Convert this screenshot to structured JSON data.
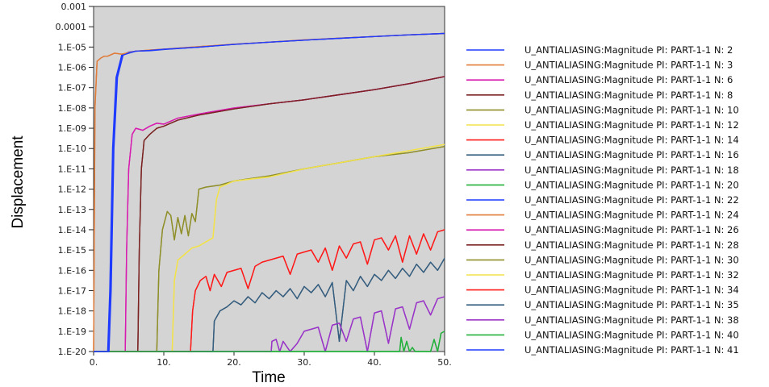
{
  "chart_data": {
    "type": "line",
    "xlabel": "Time",
    "ylabel": "Displacement",
    "xlim": [
      0,
      50
    ],
    "ylim_log10": [
      -20,
      -3
    ],
    "y_scale": "log",
    "grid": false,
    "background": "#d4d4d4",
    "legend_placement": "right",
    "x_ticks": [
      0,
      10,
      20,
      30,
      40,
      50
    ],
    "x_tick_labels": [
      "0.",
      "10.",
      "20.",
      "30.",
      "40.",
      "50."
    ],
    "y_ticks_log10": [
      -3,
      -4,
      -5,
      -6,
      -7,
      -8,
      -9,
      -10,
      -11,
      -12,
      -13,
      -14,
      -15,
      -16,
      -17,
      -18,
      -19,
      -20
    ],
    "y_tick_labels": [
      "0.001",
      "0.0001",
      "1.E-05",
      "1.E-06",
      "1.E-07",
      "1.E-08",
      "1.E-09",
      "1.E-10",
      "1.E-11",
      "1.E-12",
      "1.E-13",
      "1.E-14",
      "1.E-15",
      "1.E-16",
      "1.E-17",
      "1.E-18",
      "1.E-19",
      "1.E-20"
    ],
    "series": [
      {
        "name": "U_ANTIALIASING:Magnitude PI: PART-1-1 N: 2",
        "color": "#1f3bff",
        "x": [
          0,
          2.0,
          2.3,
          2.7,
          3.2,
          4.0,
          5.0,
          6.0,
          8,
          10,
          15,
          20,
          25,
          30,
          35,
          40,
          45,
          50
        ],
        "y": [
          -20,
          -20,
          -17,
          -10,
          -6.5,
          -5.4,
          -5.25,
          -5.2,
          -5.18,
          -5.12,
          -5.0,
          -4.86,
          -4.76,
          -4.66,
          -4.57,
          -4.48,
          -4.4,
          -4.33
        ]
      },
      {
        "name": "U_ANTIALIASING:Magnitude PI: PART-1-1 N: 3",
        "color": "#e07b39",
        "x": [
          0,
          0.2,
          0.5,
          1.0,
          1.5,
          2.0,
          3.0,
          4.0,
          6,
          8,
          10,
          15,
          20,
          25,
          30,
          35,
          40,
          45,
          50
        ],
        "y": [
          -20,
          -8,
          -5.7,
          -5.55,
          -5.45,
          -5.45,
          -5.3,
          -5.35,
          -5.2,
          -5.15,
          -5.1,
          -4.98,
          -4.86,
          -4.76,
          -4.65,
          -4.56,
          -4.48,
          -4.4,
          -4.33
        ]
      },
      {
        "name": "U_ANTIALIASING:Magnitude PI: PART-1-1 N: 6",
        "color": "#d81bb0",
        "x": [
          0,
          4.5,
          4.7,
          5.0,
          5.5,
          6.0,
          7,
          8,
          9,
          10,
          12,
          15,
          20,
          25,
          30,
          35,
          40,
          45,
          50
        ],
        "y": [
          -20,
          -20,
          -15,
          -11,
          -9.3,
          -9.0,
          -9.1,
          -8.9,
          -8.75,
          -8.8,
          -8.5,
          -8.3,
          -8.0,
          -7.8,
          -7.6,
          -7.35,
          -7.1,
          -6.8,
          -6.45
        ]
      },
      {
        "name": "U_ANTIALIASING:Magnitude PI: PART-1-1 N: 8",
        "color": "#7a2121",
        "x": [
          0,
          6.3,
          6.5,
          6.8,
          7.2,
          8,
          9,
          10,
          12,
          15,
          20,
          25,
          30,
          35,
          40,
          45,
          50
        ],
        "y": [
          -20,
          -20,
          -15,
          -11,
          -9.6,
          -9.3,
          -9.0,
          -8.9,
          -8.6,
          -8.35,
          -8.05,
          -7.8,
          -7.6,
          -7.35,
          -7.1,
          -6.8,
          -6.45
        ]
      },
      {
        "name": "U_ANTIALIASING:Magnitude PI: PART-1-1 N: 10",
        "color": "#8f8f2a",
        "x": [
          0,
          9.0,
          9.3,
          9.8,
          10.5,
          11.0,
          11.5,
          12.0,
          12.5,
          13.0,
          13.5,
          14.0,
          14.5,
          15.0,
          16,
          18,
          20,
          25,
          30,
          35,
          40,
          45,
          50
        ],
        "y": [
          -20,
          -20,
          -16,
          -14,
          -13.1,
          -13.3,
          -14.5,
          -13.4,
          -14.2,
          -13.3,
          -14.3,
          -13.2,
          -13.6,
          -12.0,
          -11.9,
          -11.8,
          -11.6,
          -11.35,
          -11.0,
          -10.7,
          -10.4,
          -10.2,
          -9.9
        ]
      },
      {
        "name": "U_ANTIALIASING:Magnitude PI: PART-1-1 N: 12",
        "color": "#f2e24a",
        "x": [
          0,
          11.2,
          11.5,
          12.0,
          13.0,
          14.0,
          15.0,
          16.0,
          17.0,
          17.5,
          18.0,
          20,
          25,
          30,
          35,
          40,
          45,
          50
        ],
        "y": [
          -20,
          -20,
          -16.5,
          -15.5,
          -15.2,
          -14.9,
          -14.8,
          -14.6,
          -14.4,
          -12.5,
          -11.9,
          -11.6,
          -11.4,
          -11.0,
          -10.7,
          -10.4,
          -10.1,
          -9.8
        ]
      },
      {
        "name": "U_ANTIALIASING:Magnitude PI: PART-1-1 N: 14",
        "color": "#ff1a1a",
        "x": [
          0,
          13.8,
          14.1,
          14.5,
          15.2,
          16.0,
          16.6,
          17.2,
          18.2,
          19,
          20,
          21,
          22,
          23,
          24,
          25,
          26,
          27,
          28,
          29,
          30,
          31,
          32,
          33,
          34,
          35,
          36,
          37,
          38,
          39,
          40,
          41,
          42,
          43,
          44,
          45,
          46,
          47,
          48,
          49,
          50
        ],
        "y": [
          -20,
          -20,
          -18,
          -17.0,
          -16.5,
          -16.3,
          -17.0,
          -16.2,
          -16.8,
          -16.1,
          -16.0,
          -15.9,
          -16.9,
          -15.8,
          -15.6,
          -15.5,
          -15.4,
          -15.3,
          -16.2,
          -15.2,
          -15.1,
          -15.0,
          -15.6,
          -14.9,
          -16.0,
          -14.8,
          -15.4,
          -14.7,
          -14.6,
          -15.7,
          -14.5,
          -14.4,
          -15.0,
          -14.3,
          -15.6,
          -14.3,
          -15.2,
          -14.2,
          -15.0,
          -14.1,
          -14.0
        ]
      },
      {
        "name": "U_ANTIALIASING:Magnitude PI: PART-1-1 N: 16",
        "color": "#355d7e",
        "x": [
          0,
          17.0,
          17.2,
          18,
          19,
          20,
          21,
          22,
          23,
          24,
          25,
          26,
          27,
          28,
          29,
          30,
          31,
          32,
          33,
          34,
          35,
          36,
          37,
          38,
          39,
          40,
          41,
          42,
          43,
          44,
          45,
          46,
          47,
          48,
          49,
          50
        ],
        "y": [
          -20,
          -20,
          -18.5,
          -18.0,
          -17.8,
          -17.5,
          -17.7,
          -17.3,
          -17.6,
          -17.1,
          -17.4,
          -17.0,
          -17.3,
          -16.9,
          -17.4,
          -16.8,
          -17.1,
          -16.7,
          -17.3,
          -16.6,
          -19.5,
          -16.5,
          -17.0,
          -16.3,
          -16.8,
          -16.2,
          -16.5,
          -16.0,
          -16.4,
          -15.9,
          -16.3,
          -15.7,
          -16.1,
          -15.6,
          -16.0,
          -15.4
        ]
      },
      {
        "name": "U_ANTIALIASING:Magnitude PI: PART-1-1 N: 18",
        "color": "#9a34c8",
        "x": [
          0,
          25.3,
          25.4,
          26.0,
          26.5,
          27,
          28,
          29,
          30,
          31,
          32,
          33,
          34,
          35,
          36,
          37,
          38,
          39,
          40,
          41,
          42,
          43,
          44,
          45,
          46,
          47,
          48,
          49,
          50
        ],
        "y": [
          -20,
          -20,
          -19.5,
          -19.4,
          -20,
          -19.5,
          -20,
          -19.6,
          -19.0,
          -18.9,
          -18.8,
          -20,
          -18.7,
          -18.6,
          -19.5,
          -18.4,
          -18.3,
          -20,
          -18.1,
          -18.0,
          -19.6,
          -17.9,
          -17.8,
          -18.9,
          -17.6,
          -17.5,
          -18.2,
          -17.4,
          -17.3
        ]
      },
      {
        "name": "U_ANTIALIASING:Magnitude PI: PART-1-1 N: 20",
        "color": "#22b03a",
        "x": [
          0,
          43.6,
          43.8,
          44.2,
          44.6,
          45.0,
          45.4,
          45.8,
          46.5,
          47.0,
          48.0,
          48.5,
          49.0,
          49.5,
          50
        ],
        "y": [
          -20,
          -20,
          -19.3,
          -20,
          -19.5,
          -20,
          -19.8,
          -20,
          -20,
          -20,
          -20,
          -19.4,
          -20,
          -19.1,
          -19.0
        ]
      },
      {
        "name": "U_ANTIALIASING:Magnitude PI: PART-1-1 N: 22",
        "color": "#1f3bff",
        "x": [
          0,
          2.1,
          2.4,
          2.8,
          3.3,
          4.1,
          5.0,
          6.0,
          8,
          10,
          15,
          20,
          25,
          30,
          35,
          40,
          45,
          50
        ],
        "y": [
          -20,
          -20,
          -17,
          -10,
          -6.5,
          -5.4,
          -5.3,
          -5.2,
          -5.17,
          -5.11,
          -5.0,
          -4.87,
          -4.76,
          -4.66,
          -4.57,
          -4.48,
          -4.4,
          -4.33
        ]
      },
      {
        "name": "U_ANTIALIASING:Magnitude PI: PART-1-1 N: 24",
        "color": "#e07b39",
        "x": [
          0,
          0.2,
          0.5,
          1.0,
          1.5,
          2.0,
          3.0,
          4.0,
          6,
          8,
          10,
          15,
          20,
          25,
          30,
          35,
          40,
          45,
          50
        ],
        "y": [
          -20,
          -8,
          -5.7,
          -5.55,
          -5.45,
          -5.45,
          -5.3,
          -5.35,
          -5.2,
          -5.15,
          -5.1,
          -4.98,
          -4.86,
          -4.76,
          -4.65,
          -4.56,
          -4.48,
          -4.4,
          -4.33
        ]
      },
      {
        "name": "U_ANTIALIASING:Magnitude PI: PART-1-1 N: 26",
        "color": "#d81bb0",
        "x": [
          0,
          4.5,
          4.7,
          5.0,
          5.5,
          6.0,
          7,
          8,
          9,
          10,
          12,
          15,
          20,
          25,
          30,
          35,
          40,
          45,
          50
        ],
        "y": [
          -20,
          -20,
          -15,
          -11,
          -9.3,
          -9.0,
          -9.1,
          -8.9,
          -8.75,
          -8.8,
          -8.5,
          -8.3,
          -8.0,
          -7.8,
          -7.6,
          -7.35,
          -7.1,
          -6.8,
          -6.45
        ]
      },
      {
        "name": "U_ANTIALIASING:Magnitude PI: PART-1-1 N: 28",
        "color": "#7a2121",
        "x": [
          0,
          6.3,
          6.5,
          6.8,
          7.2,
          8,
          9,
          10,
          12,
          15,
          20,
          25,
          30,
          35,
          40,
          45,
          50
        ],
        "y": [
          -20,
          -20,
          -15,
          -11,
          -9.6,
          -9.3,
          -9.0,
          -8.9,
          -8.6,
          -8.35,
          -8.05,
          -7.8,
          -7.6,
          -7.35,
          -7.1,
          -6.8,
          -6.45
        ]
      },
      {
        "name": "U_ANTIALIASING:Magnitude PI: PART-1-1 N: 30",
        "color": "#8f8f2a",
        "x": [
          0,
          9.0,
          9.3,
          9.8,
          10.5,
          11.0,
          11.5,
          12.0,
          12.5,
          13.0,
          13.5,
          14.0,
          14.5,
          15.0,
          16,
          18,
          20,
          25,
          30,
          35,
          40,
          45,
          50
        ],
        "y": [
          -20,
          -20,
          -16,
          -14,
          -13.1,
          -13.3,
          -14.5,
          -13.4,
          -14.2,
          -13.3,
          -14.3,
          -13.2,
          -13.6,
          -12.0,
          -11.9,
          -11.8,
          -11.6,
          -11.35,
          -11.0,
          -10.7,
          -10.4,
          -10.2,
          -9.9
        ]
      },
      {
        "name": "U_ANTIALIASING:Magnitude PI: PART-1-1 N: 32",
        "color": "#f2e24a",
        "x": [
          0,
          11.2,
          11.5,
          12.0,
          13.0,
          14.0,
          15.0,
          16.0,
          17.0,
          17.5,
          18.0,
          20,
          25,
          30,
          35,
          40,
          45,
          50
        ],
        "y": [
          -20,
          -20,
          -16.5,
          -15.5,
          -15.2,
          -14.9,
          -14.8,
          -14.6,
          -14.4,
          -12.5,
          -11.9,
          -11.6,
          -11.4,
          -11.0,
          -10.7,
          -10.4,
          -10.1,
          -9.8
        ]
      },
      {
        "name": "U_ANTIALIASING:Magnitude PI: PART-1-1 N: 34",
        "color": "#ff1a1a",
        "x": [
          0,
          13.8,
          14.1,
          14.5,
          15.2,
          16.0,
          16.6,
          17.2,
          18.2,
          19,
          20,
          21,
          22,
          23,
          24,
          25,
          26,
          27,
          28,
          29,
          30,
          31,
          32,
          33,
          34,
          35,
          36,
          37,
          38,
          39,
          40,
          41,
          42,
          43,
          44,
          45,
          46,
          47,
          48,
          49,
          50
        ],
        "y": [
          -20,
          -20,
          -18,
          -17.0,
          -16.5,
          -16.3,
          -17.0,
          -16.2,
          -16.8,
          -16.1,
          -16.0,
          -15.9,
          -16.9,
          -15.8,
          -15.6,
          -15.5,
          -15.4,
          -15.3,
          -16.2,
          -15.2,
          -15.1,
          -15.0,
          -15.6,
          -14.9,
          -16.0,
          -14.8,
          -15.4,
          -14.7,
          -14.6,
          -15.7,
          -14.5,
          -14.4,
          -15.0,
          -14.3,
          -15.6,
          -14.3,
          -15.2,
          -14.2,
          -15.0,
          -14.1,
          -14.0
        ]
      },
      {
        "name": "U_ANTIALIASING:Magnitude PI: PART-1-1 N: 35",
        "color": "#355d7e",
        "x": [
          0,
          17.0,
          17.2,
          18,
          19,
          20,
          21,
          22,
          23,
          24,
          25,
          26,
          27,
          28,
          29,
          30,
          31,
          32,
          33,
          34,
          35,
          36,
          37,
          38,
          39,
          40,
          41,
          42,
          43,
          44,
          45,
          46,
          47,
          48,
          49,
          50
        ],
        "y": [
          -20,
          -20,
          -18.5,
          -18.0,
          -17.8,
          -17.5,
          -17.7,
          -17.3,
          -17.6,
          -17.1,
          -17.4,
          -17.0,
          -17.3,
          -16.9,
          -17.4,
          -16.8,
          -17.1,
          -16.7,
          -17.3,
          -16.6,
          -19.5,
          -16.5,
          -17.0,
          -16.3,
          -16.8,
          -16.2,
          -16.5,
          -16.0,
          -16.4,
          -15.9,
          -16.3,
          -15.7,
          -16.1,
          -15.6,
          -16.0,
          -15.4
        ]
      },
      {
        "name": "U_ANTIALIASING:Magnitude PI: PART-1-1 N: 38",
        "color": "#9a34c8",
        "x": [
          0,
          25.3,
          25.4,
          26.0,
          26.5,
          27,
          28,
          29,
          30,
          31,
          32,
          33,
          34,
          35,
          36,
          37,
          38,
          39,
          40,
          41,
          42,
          43,
          44,
          45,
          46,
          47,
          48,
          49,
          50
        ],
        "y": [
          -20,
          -20,
          -19.5,
          -19.4,
          -20,
          -19.5,
          -20,
          -19.6,
          -19.0,
          -18.9,
          -18.8,
          -20,
          -18.7,
          -18.6,
          -19.5,
          -18.4,
          -18.3,
          -20,
          -18.1,
          -18.0,
          -19.6,
          -17.9,
          -17.8,
          -18.9,
          -17.6,
          -17.5,
          -18.2,
          -17.4,
          -17.3
        ]
      },
      {
        "name": "U_ANTIALIASING:Magnitude PI: PART-1-1 N: 40",
        "color": "#22b03a",
        "x": [
          0,
          43.6,
          43.8,
          44.2,
          44.6,
          45.0,
          45.4,
          45.8,
          46.5,
          47.0,
          48.0,
          48.5,
          49.0,
          49.5,
          50
        ],
        "y": [
          -20,
          -20,
          -19.3,
          -20,
          -19.5,
          -20,
          -19.8,
          -20,
          -20,
          -20,
          -20,
          -19.4,
          -20,
          -19.1,
          -19.0
        ]
      },
      {
        "name": "U_ANTIALIASING:Magnitude PI: PART-1-1 N: 41",
        "color": "#1f3bff",
        "x": [
          0,
          2.2,
          2.5,
          2.9,
          3.4,
          4.2,
          5.0,
          6.0,
          8,
          10,
          15,
          20,
          25,
          30,
          35,
          40,
          45,
          50
        ],
        "y": [
          -20,
          -20,
          -17,
          -10,
          -6.5,
          -5.4,
          -5.3,
          -5.2,
          -5.17,
          -5.11,
          -5.0,
          -4.87,
          -4.76,
          -4.66,
          -4.57,
          -4.48,
          -4.4,
          -4.33
        ]
      }
    ]
  }
}
